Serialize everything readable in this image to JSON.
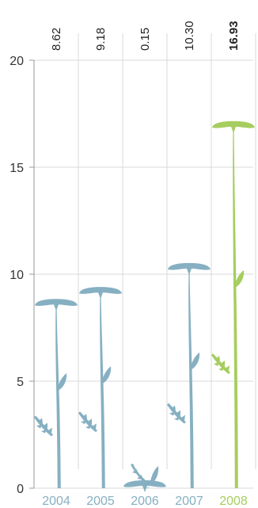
{
  "chart_data": {
    "type": "bar",
    "categories": [
      "2004",
      "2005",
      "2006",
      "2007",
      "2008"
    ],
    "values": [
      8.62,
      9.18,
      0.15,
      10.3,
      16.93
    ],
    "value_labels": [
      "8.62",
      "9.18",
      "0.15",
      "10.30",
      "16.93"
    ],
    "highlight_index": 4,
    "ylim": [
      0,
      20
    ],
    "yticks": [
      0,
      5,
      10,
      15,
      20
    ],
    "ytick_labels": [
      "0",
      "5",
      "10",
      "15",
      "20"
    ],
    "grid": true,
    "colors": {
      "default": "#86b0c2",
      "highlight": "#a6cd5f",
      "grid": "#d9d9d9",
      "axis": "#999999",
      "tick_text": "#333333"
    }
  }
}
